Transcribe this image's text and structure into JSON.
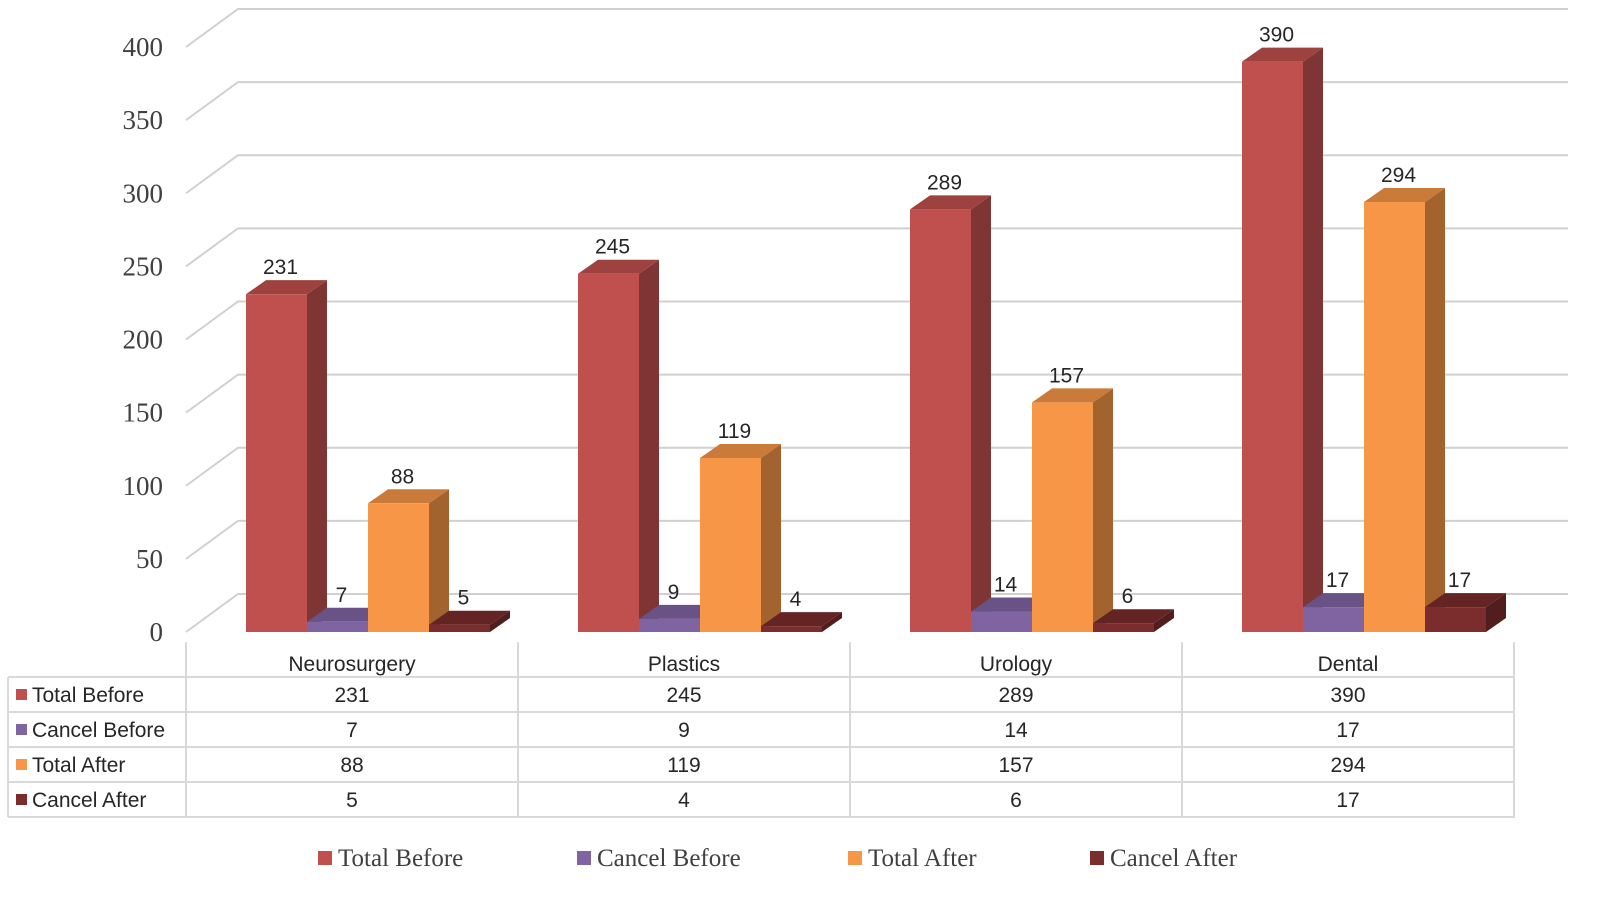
{
  "chart_data": {
    "type": "bar",
    "categories": [
      "Neurosurgery",
      "Plastics",
      "Urology",
      "Dental"
    ],
    "series": [
      {
        "name": "Total Before",
        "values": [
          231,
          245,
          289,
          390
        ],
        "color": "#C0504D"
      },
      {
        "name": "Cancel Before",
        "values": [
          7,
          9,
          14,
          17
        ],
        "color": "#8064A2"
      },
      {
        "name": "Total After",
        "values": [
          88,
          119,
          157,
          294
        ],
        "color": "#F79646"
      },
      {
        "name": "Cancel After",
        "values": [
          5,
          4,
          6,
          17
        ],
        "color": "#7B2C2C"
      }
    ],
    "y_ticks": [
      "0",
      "50",
      "100",
      "150",
      "200",
      "250",
      "300",
      "350",
      "400"
    ],
    "ylim": [
      0,
      400
    ],
    "grid": true,
    "data_table": true,
    "legend_position": "bottom",
    "style": "3d-clustered-column"
  }
}
